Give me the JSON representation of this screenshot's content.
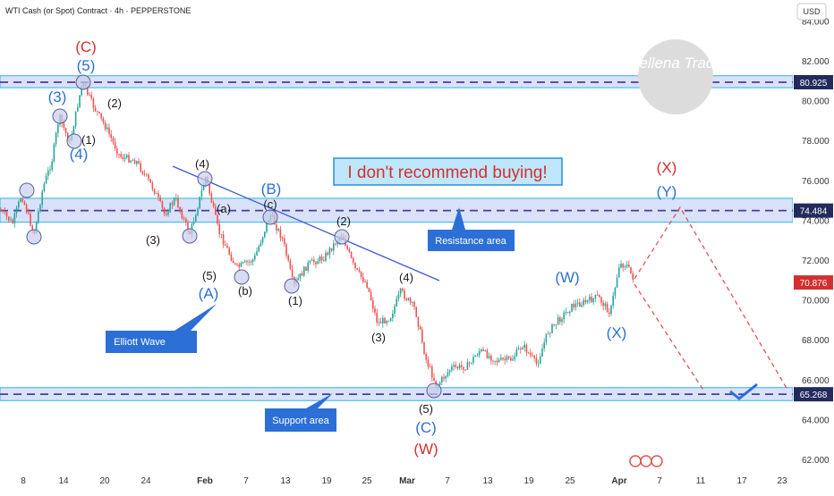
{
  "header": {
    "title": "WTI Cash (or Spot) Contract · 4h · PEPPERSTONE",
    "currency": "USD"
  },
  "watermark": "Hellena Trade",
  "chart_data": {
    "type": "candlestick",
    "y_range": [
      61.0,
      84.5
    ],
    "y_ticks": [
      "84.000",
      "82.000",
      "80.000",
      "78.000",
      "76.000",
      "74.000",
      "72.000",
      "70.000",
      "68.000",
      "66.000",
      "64.000",
      "62.000"
    ],
    "x_ticks": [
      "8",
      "14",
      "20",
      "24",
      "Feb",
      "7",
      "13",
      "19",
      "25",
      "Mar",
      "7",
      "13",
      "19",
      "25",
      "Apr",
      "7",
      "11",
      "17",
      "23"
    ],
    "price_tags": [
      {
        "value": 80.925,
        "label": "80.925",
        "color": "#232a5c"
      },
      {
        "value": 74.484,
        "label": "74.484",
        "color": "#232a5c"
      },
      {
        "value": 70.876,
        "label": "70.876",
        "color": "#d32f2f"
      },
      {
        "value": 65.268,
        "label": "65.268",
        "color": "#232a5c"
      }
    ],
    "zones": [
      {
        "name": "resistance-top",
        "from": 80.65,
        "to": 81.25
      },
      {
        "name": "resistance",
        "from": 73.9,
        "to": 75.1
      },
      {
        "name": "support",
        "from": 64.95,
        "to": 65.6
      }
    ],
    "callouts": {
      "headline": "I don't recommend buying!",
      "resistance": "Resistance area",
      "support": "Support area",
      "elliott": "Elliott Wave"
    },
    "wave_labels": [
      {
        "text": "(C)",
        "color": "#d32f2f",
        "size": "lg"
      },
      {
        "text": "(5)",
        "color": "#2c6fd6",
        "size": "lg"
      },
      {
        "text": "(3)",
        "color": "#2c6fd6",
        "size": "lg"
      },
      {
        "text": "(4)",
        "color": "#2c6fd6",
        "size": "lg"
      },
      {
        "text": "(1)",
        "color": "#1a1a1a",
        "size": "md"
      },
      {
        "text": "(2)",
        "color": "#1a1a1a",
        "size": "md"
      },
      {
        "text": "(3)",
        "color": "#1a1a1a",
        "size": "md"
      },
      {
        "text": "(4)",
        "color": "#1a1a1a",
        "size": "md"
      },
      {
        "text": "(a)",
        "color": "#1a1a1a",
        "size": "md"
      },
      {
        "text": "(5)",
        "color": "#1a1a1a",
        "size": "md"
      },
      {
        "text": "(b)",
        "color": "#1a1a1a",
        "size": "md"
      },
      {
        "text": "(A)",
        "color": "#2c6fd6",
        "size": "lg"
      },
      {
        "text": "(B)",
        "color": "#2c6fd6",
        "size": "lg"
      },
      {
        "text": "(c)",
        "color": "#1a1a1a",
        "size": "md"
      },
      {
        "text": "(1)",
        "color": "#1a1a1a",
        "size": "md"
      },
      {
        "text": "(2)",
        "color": "#1a1a1a",
        "size": "md"
      },
      {
        "text": "(4)",
        "color": "#1a1a1a",
        "size": "md"
      },
      {
        "text": "(3)",
        "color": "#1a1a1a",
        "size": "md"
      },
      {
        "text": "(5)",
        "color": "#1a1a1a",
        "size": "md"
      },
      {
        "text": "(C)",
        "color": "#2c6fd6",
        "size": "lg"
      },
      {
        "text": "(W)",
        "color": "#d32f2f",
        "size": "lg"
      },
      {
        "text": "(W)",
        "color": "#2c6fd6",
        "size": "lg"
      },
      {
        "text": "(X)",
        "color": "#2c6fd6",
        "size": "lg"
      },
      {
        "text": "(X)",
        "color": "#d32f2f",
        "size": "lg"
      },
      {
        "text": "(Y)",
        "color": "#2c6fd6",
        "size": "lg"
      }
    ],
    "colors": {
      "up": "#26a69a",
      "down": "#ef5350",
      "zone": "#c5d3f5",
      "line": "#3f5bd6",
      "projection": "#e05555"
    }
  }
}
